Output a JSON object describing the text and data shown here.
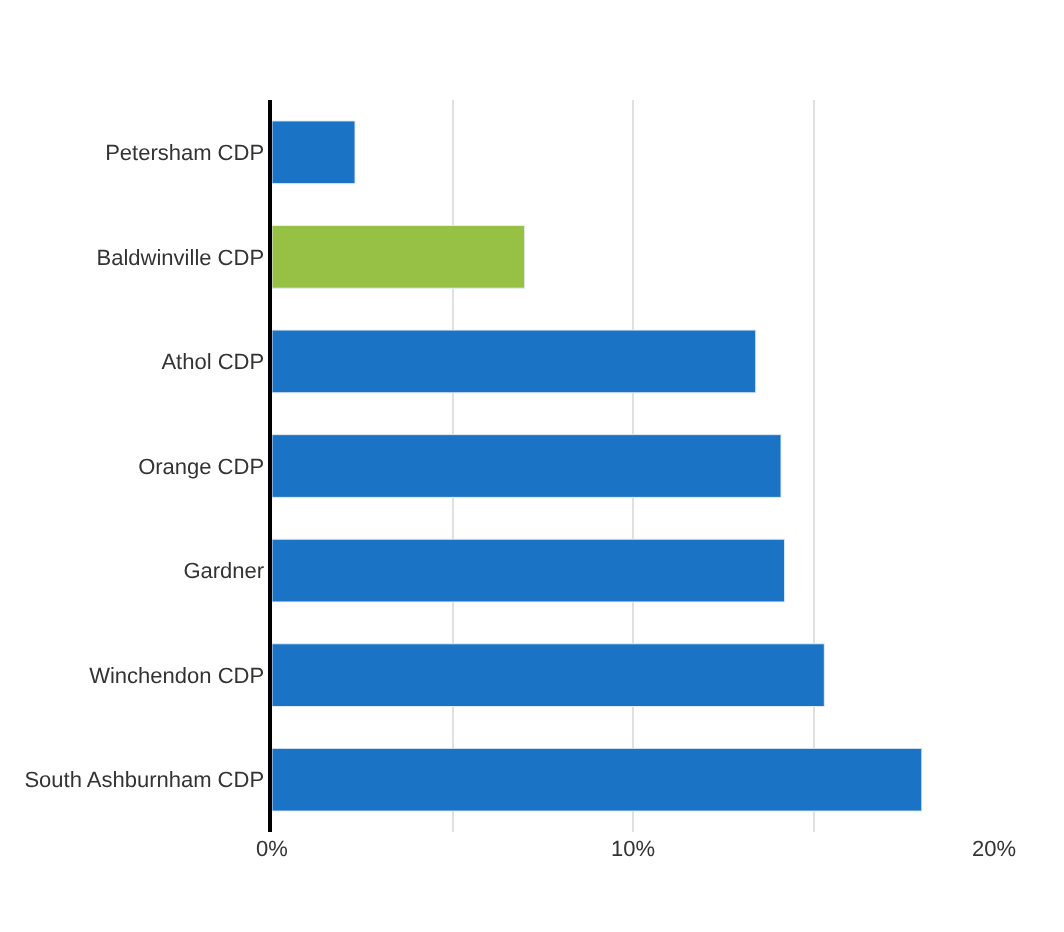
{
  "chart_data": {
    "type": "bar",
    "orientation": "horizontal",
    "categories": [
      "Petersham CDP",
      "Baldwinville CDP",
      "Athol CDP",
      "Orange CDP",
      "Gardner",
      "Winchendon CDP",
      "South Ashburnham CDP"
    ],
    "values": [
      2.3,
      7.0,
      13.4,
      14.1,
      14.2,
      15.3,
      18.0
    ],
    "colors": [
      "#1a73c4",
      "#97c145",
      "#1a73c4",
      "#1a73c4",
      "#1a73c4",
      "#1a73c4",
      "#1a73c4"
    ],
    "xlim": [
      0,
      20
    ],
    "xticks": [
      {
        "value": 0,
        "label": "0%"
      },
      {
        "value": 5,
        "label": null
      },
      {
        "value": 10,
        "label": "10%"
      },
      {
        "value": 15,
        "label": null
      },
      {
        "value": 20,
        "label": "20%"
      }
    ],
    "grid": "x"
  }
}
